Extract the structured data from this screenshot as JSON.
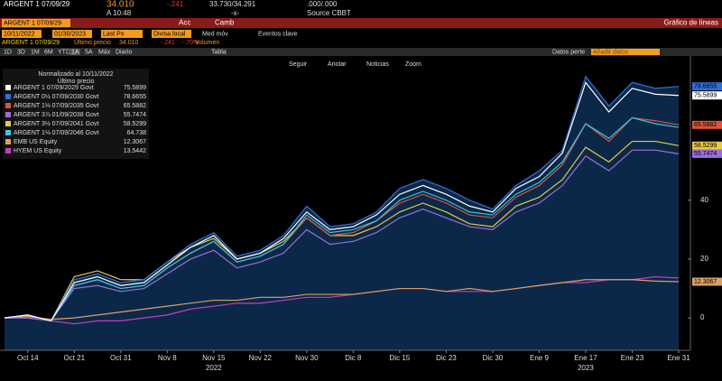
{
  "ticker_bar": {
    "security": "ARGENT 1 07/09/29",
    "price": "34.010",
    "change": "-.241",
    "bid_ask": "33.730/34.291",
    "size": ".000/.000",
    "time": "A 10:48",
    "dash": "-x-",
    "source": "Source CBBT"
  },
  "menu": {
    "security": "ARGENT 1 07/09/29",
    "actions": "Acc",
    "change": "Camb",
    "title": "Gráfico de líneas"
  },
  "controls": {
    "start": "10/11/2022",
    "end": "01/30/2023",
    "field": "Last Px",
    "currency": "Divisa local",
    "moving_avg": "Med móv",
    "events": "Eventos clave"
  },
  "quote": {
    "security": "ARGENT 1 07/09/29",
    "label": "Último precio",
    "price": "34.010",
    "change": "-.241",
    "pct": "-.70%",
    "volume": "Volumen"
  },
  "periods": [
    "1D",
    "3D",
    "1M",
    "6M",
    "YTD",
    "1A",
    "5A",
    "Máx",
    "Diario"
  ],
  "toolbar": {
    "table": "Tabla",
    "data": "Datos perte",
    "add": "Añadir datos"
  },
  "chart_tools": [
    "Seguir",
    "Anotar",
    "Noticias",
    "Zoom"
  ],
  "chart_data": {
    "type": "line",
    "legend_title": "Normalizado al 10/11/2022",
    "legend_subtitle": "Último precio",
    "categories": [
      null,
      "Oct 14",
      null,
      "Oct 21",
      null,
      "Oct 31",
      null,
      "Nov 8",
      null,
      "Nov 15",
      null,
      "Nov 22",
      null,
      "Nov 30",
      null,
      "Dic 8",
      null,
      "Dic 15",
      null,
      "Dic 23",
      null,
      "Dic 30",
      null,
      "Ene 9",
      null,
      "Ene 17",
      null,
      "Ene 23",
      null,
      "Ene 31"
    ],
    "year_labels": [
      "2022",
      "2023"
    ],
    "ylim": [
      -11,
      89
    ],
    "yticks": [
      0,
      20,
      40
    ],
    "grid": false,
    "series": [
      {
        "name": "ARGENT 1 07/09/2029 Govt",
        "color": "#ffffff",
        "values": [
          0,
          1,
          -1,
          12,
          14,
          11,
          12,
          18,
          24,
          28,
          20,
          22,
          27,
          36,
          30,
          31,
          35,
          42,
          45,
          42,
          38,
          36,
          44,
          48,
          56,
          80,
          70,
          78,
          76,
          75.5899
        ]
      },
      {
        "name": "ARGENT 0½ 07/09/2030 Govt",
        "color": "#2f6fd6",
        "values": [
          0,
          1,
          -1,
          13,
          15,
          12,
          13,
          19,
          25,
          29,
          21,
          23,
          28,
          38,
          31,
          32,
          36,
          44,
          47,
          44,
          40,
          37,
          45,
          50,
          57,
          82,
          72,
          80,
          78,
          78.6655
        ]
      },
      {
        "name": "ARGENT 1⅛ 07/09/2035 Govt",
        "color": "#e0533a",
        "values": [
          0,
          1,
          -1,
          11,
          13,
          10,
          11,
          17,
          22,
          26,
          19,
          21,
          25,
          34,
          28,
          29,
          33,
          39,
          42,
          39,
          35,
          34,
          41,
          45,
          52,
          66,
          60,
          68,
          67,
          65.5882
        ]
      },
      {
        "name": "ARGENT 3⅞ 01/09/2038 Govt",
        "color": "#9b6fd8",
        "values": [
          0,
          0,
          -1,
          10,
          11,
          9,
          10,
          15,
          20,
          23,
          17,
          19,
          22,
          30,
          25,
          26,
          29,
          34,
          37,
          34,
          31,
          30,
          36,
          39,
          45,
          55,
          50,
          57,
          57,
          55.7474
        ]
      },
      {
        "name": "ARGENT 3½ 07/09/2041 Govt",
        "color": "#e6c84a",
        "values": [
          0,
          1,
          -1,
          14,
          16,
          13,
          13,
          19,
          24,
          27,
          20,
          22,
          26,
          34,
          28,
          28,
          31,
          36,
          39,
          36,
          32,
          31,
          38,
          41,
          47,
          58,
          53,
          60,
          60,
          58.5299
        ]
      },
      {
        "name": "ARGENT 1⅛ 07/09/2046 Govt",
        "color": "#39c6e0",
        "values": [
          0,
          1,
          -1,
          11,
          13,
          10,
          11,
          17,
          22,
          26,
          19,
          21,
          25,
          35,
          29,
          30,
          33,
          40,
          43,
          40,
          36,
          35,
          42,
          46,
          53,
          66,
          61,
          68,
          66,
          64.738
        ]
      },
      {
        "name": "EMB US Equity",
        "color": "#d9a066",
        "values": [
          0,
          0.5,
          -0.5,
          0,
          1,
          2,
          3,
          4,
          5,
          6,
          6,
          7,
          7,
          8,
          8,
          8,
          9,
          10,
          10,
          9,
          10,
          9,
          10,
          11,
          12,
          13,
          13,
          13,
          12.5,
          12.3067
        ]
      },
      {
        "name": "HYEM US Equity",
        "color": "#c040c0",
        "values": [
          0,
          0,
          -1,
          -2,
          -1,
          -1,
          0,
          1,
          3,
          4,
          5,
          5,
          6,
          7,
          7,
          8,
          9,
          10,
          10,
          9,
          9,
          9,
          10,
          11,
          12,
          12,
          13,
          13,
          14,
          13.5442
        ]
      }
    ]
  }
}
